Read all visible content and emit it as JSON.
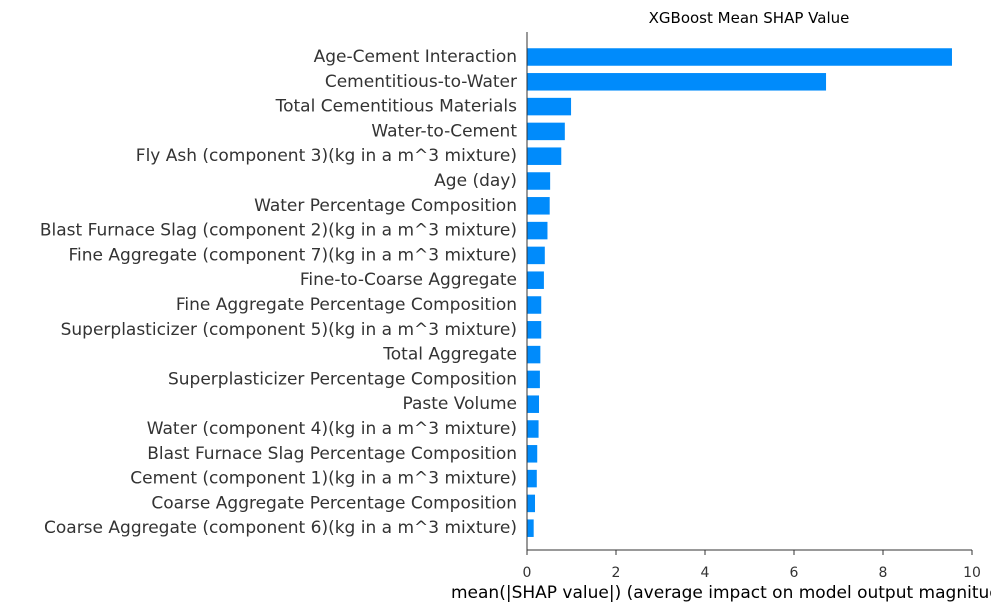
{
  "chart_data": {
    "type": "bar",
    "orientation": "horizontal",
    "title": "XGBoost Mean SHAP Value",
    "xlabel": "mean(|SHAP value|) (average impact on model output magnitude)",
    "ylabel": "",
    "xlim": [
      0,
      10
    ],
    "xticks": [
      0,
      2,
      4,
      6,
      8,
      10
    ],
    "categories": [
      "Age-Cement Interaction",
      "Cementitious-to-Water",
      "Total Cementitious Materials",
      "Water-to-Cement",
      "Fly Ash (component 3)(kg in a m^3 mixture)",
      "Age (day)",
      "Water Percentage Composition",
      "Blast Furnace Slag (component 2)(kg in a m^3 mixture)",
      "Fine Aggregate (component 7)(kg in a m^3 mixture)",
      "Fine-to-Coarse Aggregate",
      "Fine Aggregate Percentage Composition",
      "Superplasticizer (component 5)(kg in a m^3 mixture)",
      "Total Aggregate",
      "Superplasticizer Percentage Composition",
      "Paste Volume",
      "Water  (component 4)(kg in a m^3 mixture)",
      "Blast Furnace Slag Percentage Composition",
      "Cement (component 1)(kg in a m^3 mixture)",
      "Coarse Aggregate Percentage Composition",
      "Coarse Aggregate  (component 6)(kg in a m^3 mixture)"
    ],
    "values": [
      9.55,
      6.72,
      0.99,
      0.85,
      0.77,
      0.52,
      0.51,
      0.46,
      0.4,
      0.38,
      0.32,
      0.32,
      0.3,
      0.29,
      0.27,
      0.26,
      0.23,
      0.22,
      0.18,
      0.15
    ],
    "bar_color": "#008bfb",
    "grid": false,
    "legend": "none"
  }
}
